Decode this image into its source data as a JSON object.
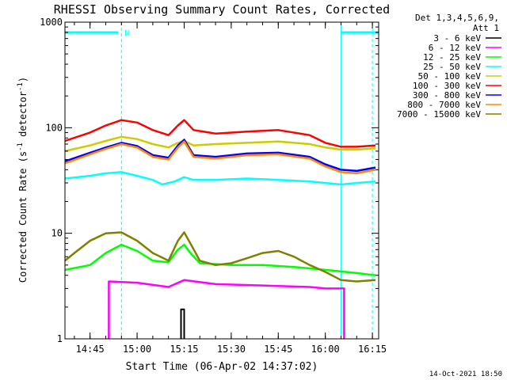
{
  "chart_data": {
    "type": "line",
    "title": "RHESSI Observing Summary Count Rates, Corrected",
    "xlabel": "Start Time (06-Apr-02 14:37:02)",
    "ylabel": "Corrected Count Rate (s⁻¹ detector⁻¹)",
    "ylabel_parts": [
      "Corrected Count Rate (s",
      "-1",
      " detector",
      "-1",
      ")"
    ],
    "yscale": "log",
    "ylim": [
      1,
      1000
    ],
    "y_ticks": [
      1,
      10,
      100,
      1000
    ],
    "y_tick_labels": [
      "1",
      "10",
      "100",
      "1000"
    ],
    "xlim": [
      "14:37",
      "16:17"
    ],
    "x_ticks": [
      "14:45",
      "15:00",
      "15:15",
      "15:30",
      "15:45",
      "16:00",
      "16:15"
    ],
    "legend_header": [
      "Det 1,3,4,5,6,9,",
      "Att 1"
    ],
    "legend_position": "right",
    "timestamp": "14-Oct-2021 18:50",
    "markers": {
      "night_vlines": [
        "14:37",
        "16:05"
      ],
      "dashed_vlines": [
        "14:55",
        "16:15"
      ],
      "top_bars": [
        [
          "14:37",
          "14:54"
        ],
        [
          "16:05",
          "16:17"
        ]
      ],
      "n_label": "N",
      "n_time": "14:56"
    },
    "series": [
      {
        "name": "3 - 6 keV",
        "color": "#000000",
        "points": [
          [
            "15:14",
            1.0
          ],
          [
            "15:14",
            1.9
          ],
          [
            "15:15",
            1.9
          ],
          [
            "15:15",
            1.0
          ]
        ]
      },
      {
        "name": "6 - 12 keV",
        "color": "#ff00ff",
        "points": [
          [
            "14:51",
            1.0
          ],
          [
            "14:51",
            3.5
          ],
          [
            "15:00",
            3.4
          ],
          [
            "15:10",
            3.1
          ],
          [
            "15:15",
            3.6
          ],
          [
            "15:25",
            3.3
          ],
          [
            "15:40",
            3.2
          ],
          [
            "15:55",
            3.1
          ],
          [
            "16:00",
            3.0
          ],
          [
            "16:06",
            3.0
          ],
          [
            "16:06",
            1.0
          ]
        ]
      },
      {
        "name": "12 - 25 keV",
        "color": "#00ff00",
        "points": [
          [
            "14:37",
            4.5
          ],
          [
            "14:45",
            5.0
          ],
          [
            "14:50",
            6.5
          ],
          [
            "14:55",
            7.8
          ],
          [
            "15:00",
            6.8
          ],
          [
            "15:05",
            5.5
          ],
          [
            "15:10",
            5.3
          ],
          [
            "15:13",
            7.0
          ],
          [
            "15:15",
            7.8
          ],
          [
            "15:17",
            6.5
          ],
          [
            "15:20",
            5.2
          ],
          [
            "15:30",
            5.0
          ],
          [
            "15:40",
            5.0
          ],
          [
            "15:50",
            4.8
          ],
          [
            "16:00",
            4.5
          ],
          [
            "16:10",
            4.2
          ],
          [
            "16:16",
            4.0
          ]
        ]
      },
      {
        "name": "25 - 50 keV",
        "color": "#00ffff",
        "points": [
          [
            "14:37",
            33
          ],
          [
            "14:45",
            35
          ],
          [
            "14:50",
            37
          ],
          [
            "14:55",
            38
          ],
          [
            "15:00",
            35
          ],
          [
            "15:05",
            32
          ],
          [
            "15:08",
            29
          ],
          [
            "15:12",
            31
          ],
          [
            "15:15",
            34
          ],
          [
            "15:18",
            32
          ],
          [
            "15:25",
            32
          ],
          [
            "15:35",
            33
          ],
          [
            "15:45",
            32
          ],
          [
            "15:55",
            31
          ],
          [
            "16:00",
            30
          ],
          [
            "16:05",
            29
          ],
          [
            "16:10",
            30
          ],
          [
            "16:16",
            31
          ]
        ]
      },
      {
        "name": "50 - 100 keV",
        "color": "#cccc00",
        "points": [
          [
            "14:37",
            60
          ],
          [
            "14:45",
            68
          ],
          [
            "14:50",
            75
          ],
          [
            "14:55",
            82
          ],
          [
            "15:00",
            78
          ],
          [
            "15:05",
            70
          ],
          [
            "15:10",
            65
          ],
          [
            "15:13",
            72
          ],
          [
            "15:15",
            75
          ],
          [
            "15:18",
            68
          ],
          [
            "15:25",
            70
          ],
          [
            "15:35",
            72
          ],
          [
            "15:45",
            74
          ],
          [
            "15:55",
            70
          ],
          [
            "16:00",
            65
          ],
          [
            "16:05",
            62
          ],
          [
            "16:10",
            62
          ],
          [
            "16:16",
            64
          ]
        ]
      },
      {
        "name": "100 - 300 keV",
        "color": "#ff0000",
        "points": [
          [
            "14:37",
            75
          ],
          [
            "14:45",
            90
          ],
          [
            "14:50",
            105
          ],
          [
            "14:55",
            118
          ],
          [
            "15:00",
            112
          ],
          [
            "15:05",
            95
          ],
          [
            "15:10",
            85
          ],
          [
            "15:13",
            105
          ],
          [
            "15:15",
            118
          ],
          [
            "15:18",
            95
          ],
          [
            "15:25",
            88
          ],
          [
            "15:35",
            92
          ],
          [
            "15:45",
            95
          ],
          [
            "15:55",
            85
          ],
          [
            "16:00",
            72
          ],
          [
            "16:05",
            66
          ],
          [
            "16:10",
            66
          ],
          [
            "16:16",
            68
          ]
        ]
      },
      {
        "name": "300 - 800 keV",
        "color": "#0000ff",
        "points": [
          [
            "14:37",
            48
          ],
          [
            "14:45",
            58
          ],
          [
            "14:50",
            65
          ],
          [
            "14:55",
            72
          ],
          [
            "15:00",
            67
          ],
          [
            "15:05",
            55
          ],
          [
            "15:10",
            52
          ],
          [
            "15:13",
            68
          ],
          [
            "15:15",
            77
          ],
          [
            "15:18",
            55
          ],
          [
            "15:25",
            53
          ],
          [
            "15:35",
            57
          ],
          [
            "15:45",
            58
          ],
          [
            "15:55",
            53
          ],
          [
            "16:00",
            45
          ],
          [
            "16:05",
            40
          ],
          [
            "16:10",
            39
          ],
          [
            "16:16",
            42
          ]
        ]
      },
      {
        "name": "800 - 7000 keV",
        "color": "#ff8800",
        "points": [
          [
            "14:37",
            46
          ],
          [
            "14:45",
            56
          ],
          [
            "14:50",
            63
          ],
          [
            "14:55",
            70
          ],
          [
            "15:00",
            65
          ],
          [
            "15:05",
            53
          ],
          [
            "15:10",
            50
          ],
          [
            "15:13",
            65
          ],
          [
            "15:15",
            74
          ],
          [
            "15:18",
            53
          ],
          [
            "15:25",
            51
          ],
          [
            "15:35",
            55
          ],
          [
            "15:45",
            56
          ],
          [
            "15:55",
            51
          ],
          [
            "16:00",
            43
          ],
          [
            "16:05",
            38
          ],
          [
            "16:10",
            37
          ],
          [
            "16:16",
            40
          ]
        ]
      },
      {
        "name": "7000 - 15000 keV",
        "color": "#808000",
        "points": [
          [
            "14:37",
            5.5
          ],
          [
            "14:40",
            6.5
          ],
          [
            "14:45",
            8.5
          ],
          [
            "14:50",
            10.0
          ],
          [
            "14:55",
            10.2
          ],
          [
            "15:00",
            8.5
          ],
          [
            "15:05",
            6.5
          ],
          [
            "15:10",
            5.5
          ],
          [
            "15:13",
            8.5
          ],
          [
            "15:15",
            10.2
          ],
          [
            "15:17",
            8.0
          ],
          [
            "15:20",
            5.5
          ],
          [
            "15:25",
            5.0
          ],
          [
            "15:30",
            5.2
          ],
          [
            "15:35",
            5.8
          ],
          [
            "15:40",
            6.5
          ],
          [
            "15:45",
            6.8
          ],
          [
            "15:50",
            6.0
          ],
          [
            "15:55",
            5.0
          ],
          [
            "16:00",
            4.3
          ],
          [
            "16:05",
            3.6
          ],
          [
            "16:10",
            3.5
          ],
          [
            "16:16",
            3.6
          ]
        ]
      }
    ]
  }
}
